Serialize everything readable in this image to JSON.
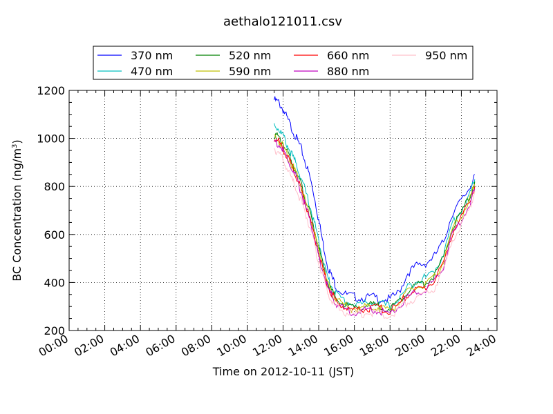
{
  "chart_data": {
    "type": "line",
    "title": "aethalo121011.csv",
    "xlabel": "Time on 2012-10-11 (JST)",
    "ylabel_main": "BC Concentration (ng/m",
    "ylabel_sup": "3",
    "ylabel_end": ")",
    "xlim": [
      0,
      24
    ],
    "ylim": [
      200,
      1200
    ],
    "x_unit": "hours",
    "x_ticks": [
      0,
      2,
      4,
      6,
      8,
      10,
      12,
      14,
      16,
      18,
      20,
      22,
      24
    ],
    "x_tick_labels": [
      "00:00",
      "02:00",
      "04:00",
      "06:00",
      "08:00",
      "10:00",
      "12:00",
      "14:00",
      "16:00",
      "18:00",
      "20:00",
      "22:00",
      "24:00"
    ],
    "y_ticks": [
      200,
      400,
      600,
      800,
      1000,
      1200
    ],
    "y_tick_labels": [
      "200",
      "400",
      "600",
      "800",
      "1000",
      "1200"
    ],
    "grid": true,
    "legend_placement": "top-center",
    "legend_ncol": 4,
    "series": [
      {
        "name": "370 nm",
        "color": "#0000ff",
        "x": [
          11.5,
          11.75,
          12.0,
          12.25,
          12.5,
          12.75,
          13.0,
          13.25,
          13.5,
          13.75,
          14.0,
          14.25,
          14.5,
          14.75,
          15.0,
          15.5,
          16.0,
          16.5,
          17.0,
          17.5,
          18.0,
          18.5,
          19.0,
          19.5,
          20.0,
          20.5,
          21.0,
          21.5,
          22.0,
          22.5,
          22.75
        ],
        "y": [
          1160,
          1150,
          1120,
          1080,
          1040,
          1000,
          960,
          900,
          840,
          760,
          660,
          560,
          470,
          420,
          380,
          350,
          340,
          335,
          340,
          330,
          330,
          360,
          440,
          470,
          480,
          510,
          570,
          690,
          740,
          800,
          850
        ]
      },
      {
        "name": "470 nm",
        "color": "#00bfbf",
        "x": [
          11.5,
          11.75,
          12.0,
          12.25,
          12.5,
          12.75,
          13.0,
          13.25,
          13.5,
          13.75,
          14.0,
          14.25,
          14.5,
          14.75,
          15.0,
          15.5,
          16.0,
          16.5,
          17.0,
          17.5,
          18.0,
          18.5,
          19.0,
          19.5,
          20.0,
          20.5,
          21.0,
          21.5,
          22.0,
          22.5,
          22.75
        ],
        "y": [
          1060,
          1040,
          1010,
          970,
          930,
          890,
          840,
          780,
          720,
          650,
          570,
          490,
          420,
          380,
          350,
          320,
          310,
          310,
          320,
          310,
          300,
          330,
          380,
          410,
          420,
          450,
          520,
          650,
          700,
          770,
          830
        ]
      },
      {
        "name": "520 nm",
        "color": "#008000",
        "x": [
          11.5,
          11.75,
          12.0,
          12.25,
          12.5,
          12.75,
          13.0,
          13.25,
          13.5,
          13.75,
          14.0,
          14.25,
          14.5,
          14.75,
          15.0,
          15.5,
          16.0,
          16.5,
          17.0,
          17.5,
          18.0,
          18.5,
          19.0,
          19.5,
          20.0,
          20.5,
          21.0,
          21.5,
          22.0,
          22.5,
          22.75
        ],
        "y": [
          1020,
          1000,
          980,
          940,
          900,
          860,
          810,
          750,
          690,
          620,
          540,
          470,
          400,
          360,
          330,
          305,
          295,
          300,
          305,
          300,
          290,
          320,
          370,
          390,
          400,
          430,
          500,
          630,
          690,
          760,
          820
        ]
      },
      {
        "name": "590 nm",
        "color": "#bfbf00",
        "x": [
          11.5,
          11.75,
          12.0,
          12.25,
          12.5,
          12.75,
          13.0,
          13.25,
          13.5,
          13.75,
          14.0,
          14.25,
          14.5,
          14.75,
          15.0,
          15.5,
          16.0,
          16.5,
          17.0,
          17.5,
          18.0,
          18.5,
          19.0,
          19.5,
          20.0,
          20.5,
          21.0,
          21.5,
          22.0,
          22.5,
          22.75
        ],
        "y": [
          1010,
          990,
          970,
          930,
          890,
          850,
          800,
          740,
          680,
          610,
          530,
          460,
          395,
          355,
          325,
          300,
          290,
          295,
          300,
          295,
          285,
          315,
          360,
          380,
          390,
          420,
          490,
          620,
          680,
          750,
          810
        ]
      },
      {
        "name": "660 nm",
        "color": "#ff0000",
        "x": [
          11.5,
          11.75,
          12.0,
          12.25,
          12.5,
          12.75,
          13.0,
          13.25,
          13.5,
          13.75,
          14.0,
          14.25,
          14.5,
          14.75,
          15.0,
          15.5,
          16.0,
          16.5,
          17.0,
          17.5,
          18.0,
          18.5,
          19.0,
          19.5,
          20.0,
          20.5,
          21.0,
          21.5,
          22.0,
          22.5,
          22.75
        ],
        "y": [
          1000,
          985,
          960,
          920,
          880,
          840,
          790,
          730,
          670,
          600,
          520,
          450,
          390,
          350,
          320,
          295,
          285,
          290,
          295,
          290,
          280,
          310,
          350,
          370,
          380,
          410,
          480,
          610,
          670,
          740,
          800
        ]
      },
      {
        "name": "880 nm",
        "color": "#bf00bf",
        "x": [
          11.5,
          11.75,
          12.0,
          12.25,
          12.5,
          12.75,
          13.0,
          13.25,
          13.5,
          13.75,
          14.0,
          14.25,
          14.5,
          14.75,
          15.0,
          15.5,
          16.0,
          16.5,
          17.0,
          17.5,
          18.0,
          18.5,
          19.0,
          19.5,
          20.0,
          20.5,
          21.0,
          21.5,
          22.0,
          22.5,
          22.75
        ],
        "y": [
          990,
          975,
          950,
          910,
          870,
          830,
          780,
          720,
          660,
          590,
          510,
          440,
          380,
          340,
          310,
          285,
          275,
          280,
          290,
          280,
          270,
          300,
          340,
          360,
          370,
          400,
          470,
          600,
          660,
          730,
          790
        ]
      },
      {
        "name": "950 nm",
        "color": "#ffc0cb",
        "x": [
          11.5,
          11.75,
          12.0,
          12.25,
          12.5,
          12.75,
          13.0,
          13.25,
          13.5,
          13.75,
          14.0,
          14.25,
          14.5,
          14.75,
          15.0,
          15.5,
          16.0,
          16.5,
          17.0,
          17.5,
          18.0,
          18.5,
          19.0,
          19.5,
          20.0,
          20.5,
          21.0,
          21.5,
          22.0,
          22.5,
          22.75
        ],
        "y": [
          960,
          940,
          910,
          870,
          830,
          790,
          740,
          690,
          630,
          560,
          480,
          420,
          360,
          320,
          300,
          275,
          265,
          270,
          275,
          270,
          260,
          290,
          320,
          340,
          350,
          380,
          450,
          580,
          640,
          710,
          780
        ]
      }
    ]
  }
}
